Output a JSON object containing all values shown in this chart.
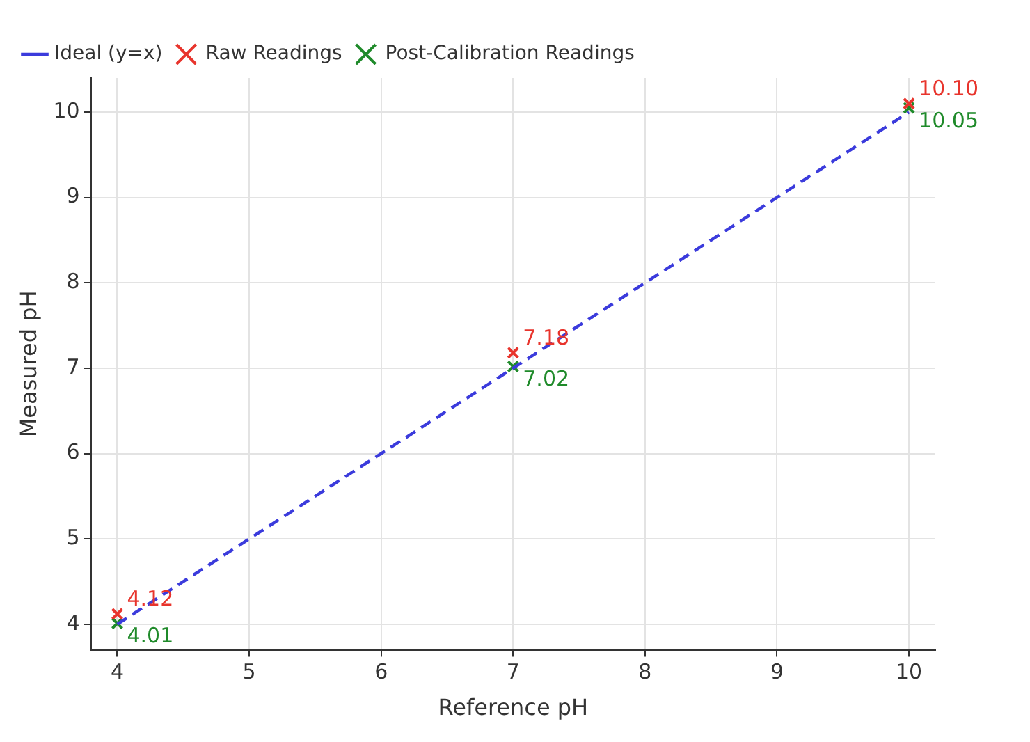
{
  "chart_data": {
    "type": "scatter",
    "xlabel": "Reference pH",
    "ylabel": "Measured pH",
    "xlim": [
      3.8,
      10.2
    ],
    "ylim": [
      3.7,
      10.4
    ],
    "xticks": [
      4,
      5,
      6,
      7,
      8,
      9,
      10
    ],
    "yticks": [
      4,
      5,
      6,
      7,
      8,
      9,
      10
    ],
    "grid": true,
    "legend": "top left",
    "marker": "cross",
    "series": [
      {
        "name": "Ideal (y=x)",
        "type": "line",
        "line_style": "dashed",
        "marker": "none",
        "color": "#3b3bdc",
        "x": [
          4,
          10
        ],
        "values": [
          4,
          10
        ]
      },
      {
        "name": "Raw Readings",
        "type": "scatter",
        "color": "#e8342c",
        "x": [
          4,
          7,
          10
        ],
        "values": [
          4.12,
          7.18,
          10.1
        ],
        "value_labels": [
          "4.12",
          "7.18",
          "10.10"
        ]
      },
      {
        "name": "Post-Calibration Readings",
        "type": "scatter",
        "color": "#1f8a2a",
        "x": [
          4,
          7,
          10
        ],
        "values": [
          4.01,
          7.02,
          10.05
        ],
        "value_labels": [
          "4.01",
          "7.02",
          "10.05"
        ]
      }
    ]
  }
}
